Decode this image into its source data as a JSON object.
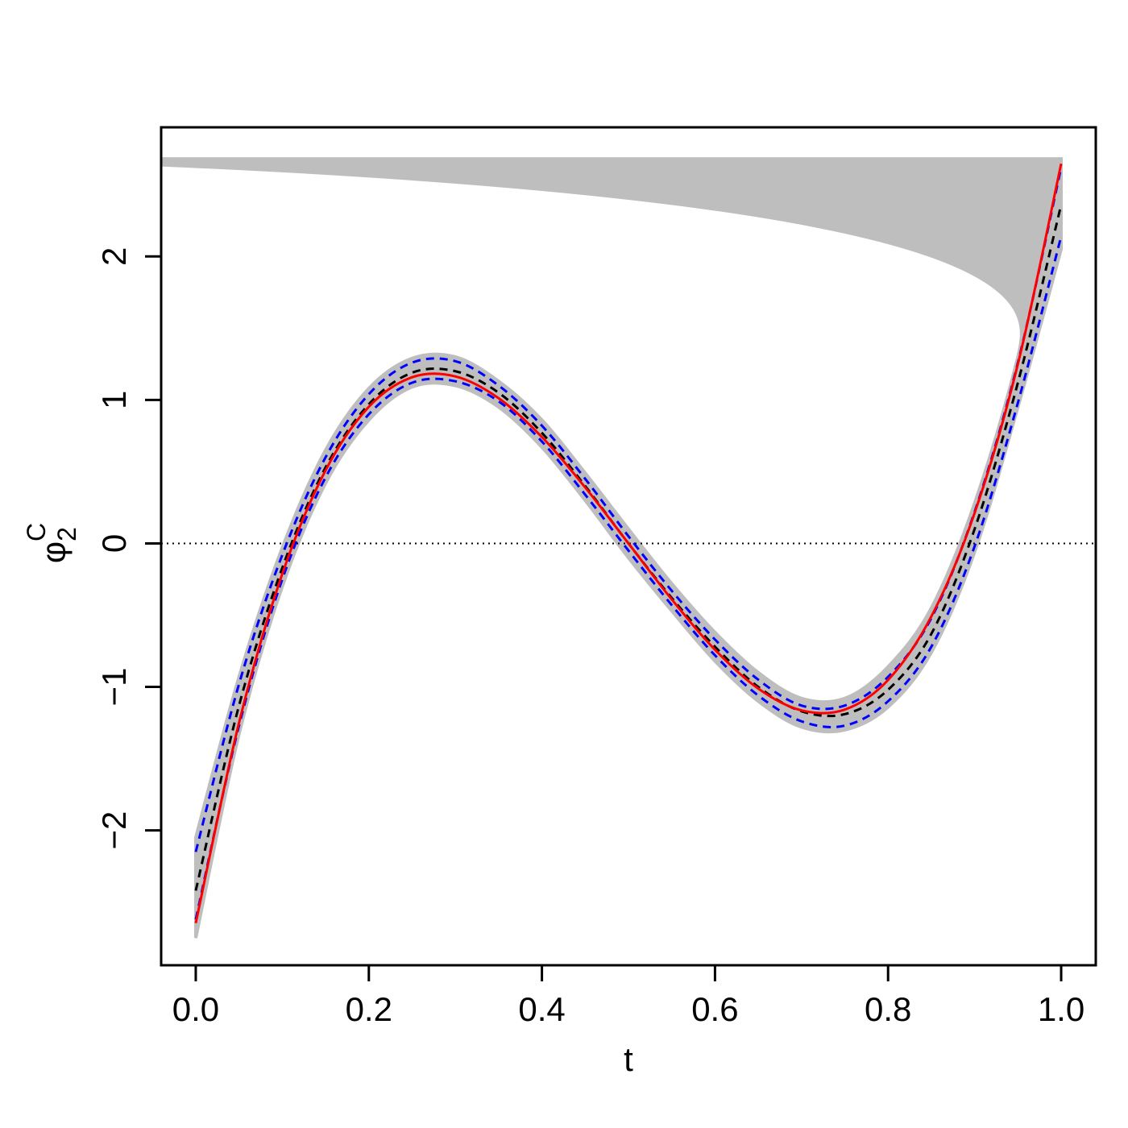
{
  "chart_data": {
    "type": "line",
    "xlabel": "t",
    "ylabel": {
      "base": "φ",
      "sub": "2",
      "sup": "C"
    },
    "x": [
      0,
      0.05,
      0.1,
      0.15,
      0.2,
      0.25,
      0.3,
      0.35,
      0.4,
      0.45,
      0.5,
      0.55,
      0.6,
      0.65,
      0.7,
      0.75,
      0.8,
      0.85,
      0.9,
      0.95,
      1
    ],
    "band": {
      "color": "#bebebe",
      "lower": [
        -2.75,
        -1.33,
        -0.3,
        0.42,
        0.86,
        1.09,
        1.1,
        0.95,
        0.67,
        0.3,
        -0.1,
        -0.47,
        -0.82,
        -1.1,
        -1.28,
        -1.3,
        -1.14,
        -0.76,
        -0.06,
        0.95,
        2.05
      ],
      "upper": [
        -2.05,
        -0.93,
        -0.03,
        0.65,
        1.08,
        1.29,
        1.3,
        1.13,
        0.86,
        0.49,
        0.1,
        -0.28,
        -0.62,
        -0.9,
        -1.08,
        -1.08,
        -0.86,
        -0.45,
        0.28,
        1.3,
        2.68
      ]
    },
    "series": [
      {
        "color": "#0000ff",
        "dashed": true,
        "values": [
          -2.15,
          -0.98,
          -0.08,
          0.6,
          1.04,
          1.26,
          1.27,
          1.1,
          0.82,
          0.45,
          0.05,
          -0.33,
          -0.67,
          -0.95,
          -1.13,
          -1.13,
          -0.93,
          -0.52,
          0.22,
          1.26,
          2.62
        ]
      },
      {
        "color": "#0000ff",
        "dashed": true,
        "values": [
          -2.62,
          -1.27,
          -0.25,
          0.46,
          0.9,
          1.12,
          1.13,
          0.99,
          0.71,
          0.34,
          -0.05,
          -0.43,
          -0.78,
          -1.06,
          -1.24,
          -1.27,
          -1.1,
          -0.72,
          -0.02,
          0.98,
          2.14
        ]
      },
      {
        "color": "#000000",
        "dashed": true,
        "values": [
          -2.42,
          -1.13,
          -0.17,
          0.53,
          0.97,
          1.19,
          1.2,
          1.05,
          0.77,
          0.4,
          0.0,
          -0.38,
          -0.72,
          -1.0,
          -1.17,
          -1.19,
          -1.02,
          -0.63,
          0.1,
          1.12,
          2.36
        ]
      },
      {
        "color": "#ff0000",
        "dashed": false,
        "values": [
          -2.646,
          -1.25,
          -0.212,
          0.509,
          0.952,
          1.158,
          1.164,
          1.012,
          0.741,
          0.39,
          0,
          -0.39,
          -0.741,
          -1.012,
          -1.164,
          -1.158,
          -0.952,
          -0.509,
          0.212,
          1.25,
          2.646
        ]
      }
    ],
    "hline": 0,
    "xlim": [
      -0.04,
      1.04
    ],
    "ylim": [
      -2.94,
      2.9
    ],
    "xticks": [
      {
        "value": 0,
        "label": "0.0"
      },
      {
        "value": 0.2,
        "label": "0.2"
      },
      {
        "value": 0.4,
        "label": "0.4"
      },
      {
        "value": 0.6,
        "label": "0.6"
      },
      {
        "value": 0.8,
        "label": "0.8"
      },
      {
        "value": 1,
        "label": "1.0"
      }
    ],
    "yticks": [
      {
        "value": -2,
        "label": "−2"
      },
      {
        "value": -1,
        "label": "−1"
      },
      0,
      1,
      2
    ]
  }
}
